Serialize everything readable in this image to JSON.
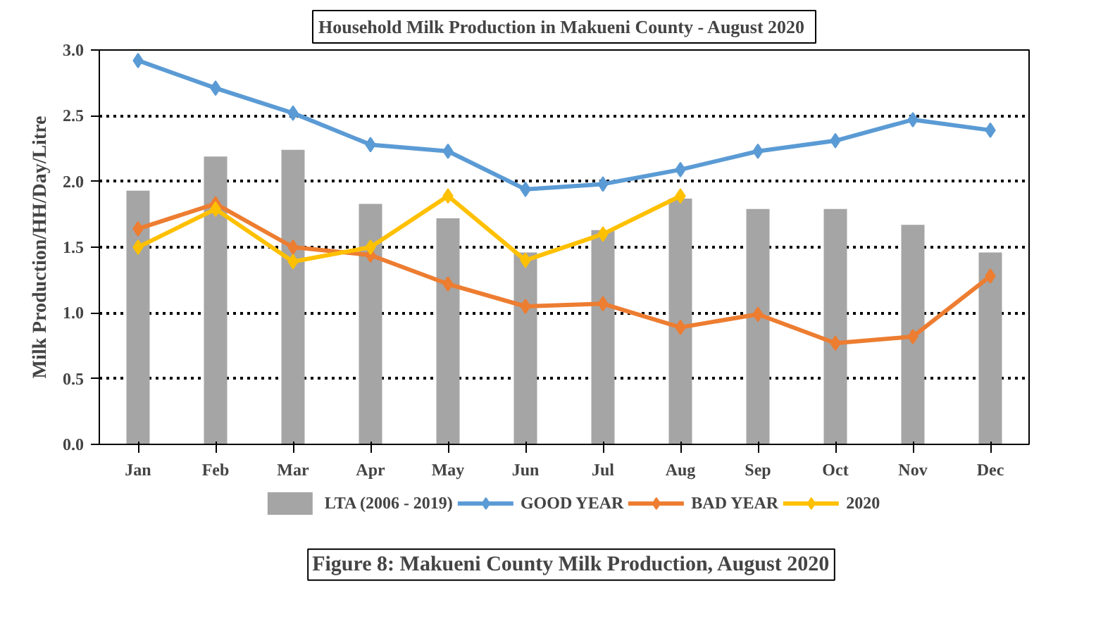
{
  "chart_data": {
    "type": "bar",
    "title": "Household Milk Production in Makueni  County - August 2020",
    "ylabel": "Milk Production/HH/Day/Litre",
    "categories": [
      "Jan",
      "Feb",
      "Mar",
      "Apr",
      "May",
      "Jun",
      "Jul",
      "Aug",
      "Sep",
      "Oct",
      "Nov",
      "Dec"
    ],
    "series": [
      {
        "name": "LTA (2006 - 2019)",
        "color": "#a5a5a5",
        "values": [
          1.93,
          2.19,
          2.24,
          1.83,
          1.72,
          1.46,
          1.63,
          1.87,
          1.79,
          1.79,
          1.67,
          1.46
        ]
      },
      {
        "name": "GOOD YEAR",
        "type": "line",
        "color": "#5b9bd5",
        "values": [
          2.92,
          2.71,
          2.52,
          2.28,
          2.23,
          1.94,
          1.98,
          2.09,
          2.23,
          2.31,
          2.47,
          2.39
        ]
      },
      {
        "name": "BAD YEAR",
        "type": "line",
        "color": "#ed7d31",
        "values": [
          1.64,
          1.83,
          1.5,
          1.44,
          1.22,
          1.05,
          1.07,
          0.89,
          0.99,
          0.77,
          0.82,
          1.28
        ]
      },
      {
        "name": "2020",
        "type": "line",
        "color": "#ffc000",
        "values": [
          1.5,
          1.79,
          1.39,
          1.5,
          1.89,
          1.4,
          1.6,
          1.89,
          null,
          null,
          null,
          null
        ]
      }
    ],
    "ylim": [
      0,
      3.0
    ],
    "yticks": [
      {
        "value": 0,
        "label": "0.0"
      },
      {
        "value": 0.5,
        "label": "0.5"
      },
      {
        "value": 1,
        "label": "1.0"
      },
      {
        "value": 1.5,
        "label": "1.5"
      },
      {
        "value": 2,
        "label": "2.0"
      },
      {
        "value": 2.5,
        "label": "2.5"
      },
      {
        "value": 3,
        "label": "3.0"
      }
    ],
    "grid": "y",
    "legend": "bottom",
    "marker": "diamond",
    "line_style": "solid",
    "annotations": [
      "Figure 8: Makueni County Milk Production, August 2020"
    ]
  }
}
